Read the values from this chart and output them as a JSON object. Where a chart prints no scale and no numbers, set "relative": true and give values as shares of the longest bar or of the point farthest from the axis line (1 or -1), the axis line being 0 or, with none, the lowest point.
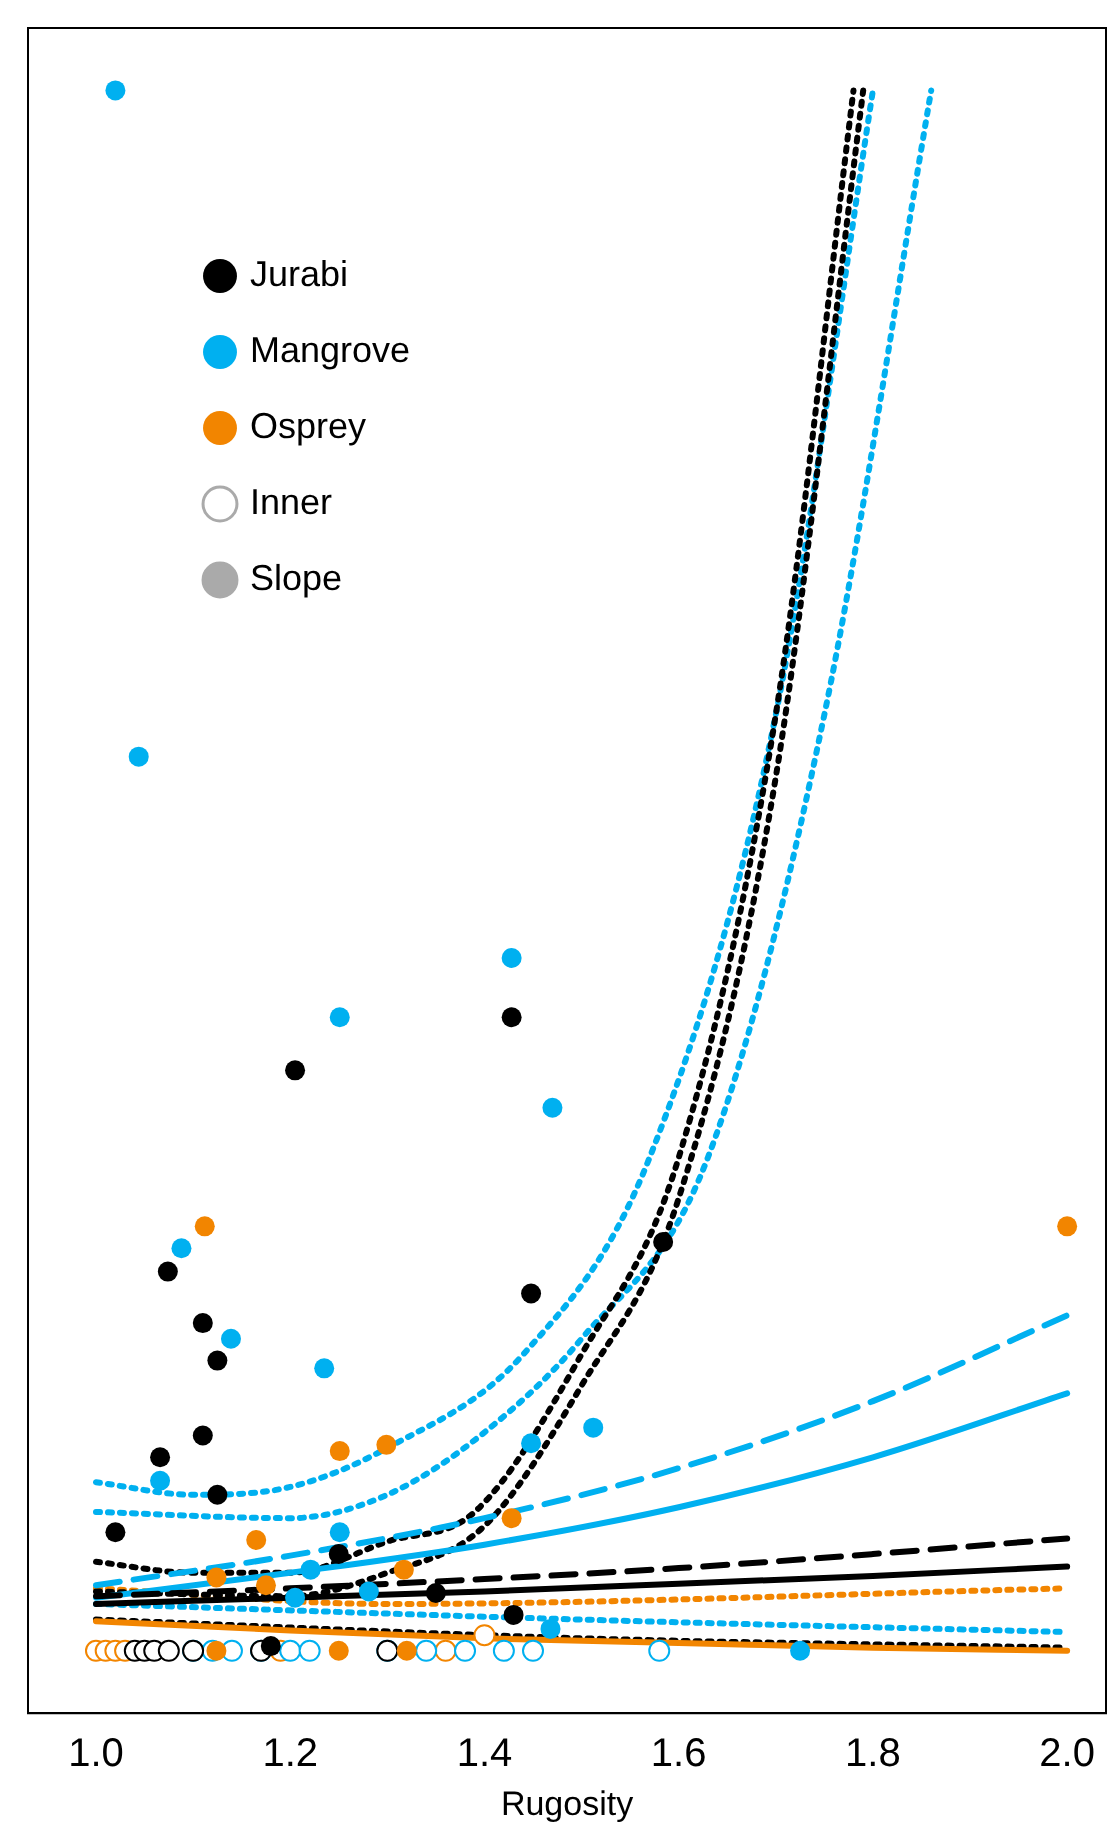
{
  "chart_data": {
    "type": "scatter",
    "xlabel": "Rugosity",
    "relative": true,
    "xlim": [
      0.93,
      2.04
    ],
    "xticks": [
      {
        "value": 1,
        "label": "1.0"
      },
      {
        "value": 1.2,
        "label": "1.2"
      },
      {
        "value": 1.4,
        "label": "1.4"
      },
      {
        "value": 1.6,
        "label": "1.6"
      },
      {
        "value": 1.8,
        "label": "1.8"
      },
      {
        "value": 2,
        "label": "2.0"
      }
    ],
    "grid": false,
    "legend": "top left",
    "marker": "circle",
    "series": [
      {
        "name": "Jurabi",
        "type": "scatter",
        "color": "#000000",
        "x": [
          1.02,
          1.066,
          1.074,
          1.11,
          1.11,
          1.125,
          1.125,
          1.205,
          1.25,
          1.35,
          1.428,
          1.43,
          1.448,
          1.584,
          1.18
        ],
        "values": [
          0.076,
          0.124,
          0.243,
          0.21,
          0.138,
          0.186,
          0.1,
          0.372,
          0.062,
          0.037,
          0.406,
          0.023,
          0.229,
          0.262,
          0.003
        ]
      },
      {
        "name": "Mangrove",
        "type": "scatter",
        "color": "#00b0f0",
        "x": [
          1.02,
          1.044,
          1.088,
          1.066,
          1.139,
          1.235,
          1.251,
          1.221,
          1.205,
          1.281,
          1.428,
          1.251,
          1.47,
          1.448,
          1.512,
          1.468,
          1.725
        ],
        "values": [
          1.0,
          0.573,
          0.258,
          0.109,
          0.2,
          0.181,
          0.076,
          0.052,
          0.034,
          0.038,
          0.444,
          0.406,
          0.348,
          0.133,
          0.143,
          0.014,
          0.0
        ]
      },
      {
        "name": "Osprey",
        "type": "scatter",
        "color": "#f28500",
        "x": [
          1.112,
          1.251,
          1.299,
          1.165,
          1.428,
          1.317,
          1.124,
          1.175,
          2.0,
          1.124,
          1.25,
          1.32
        ],
        "values": [
          0.272,
          0.128,
          0.132,
          0.071,
          0.085,
          0.052,
          0.047,
          0.042,
          0.272,
          0.0,
          0.0,
          0.0
        ]
      },
      {
        "type": "scatter",
        "line_style": "solid",
        "color": "#000000",
        "x": [
          1.04,
          1.05,
          1.06,
          1.075,
          1.1,
          1.17,
          1.3
        ],
        "values": [
          0,
          0,
          0,
          0,
          0,
          0,
          0
        ]
      },
      {
        "type": "scatter",
        "line_style": "solid",
        "color": "#00b0f0",
        "x": [
          1.1,
          1.12,
          1.14,
          1.17,
          1.2,
          1.22,
          1.3,
          1.34,
          1.38,
          1.42,
          1.45,
          1.58
        ],
        "values": [
          0,
          0,
          0,
          0,
          0,
          0,
          0,
          0,
          0,
          0,
          0,
          0
        ]
      },
      {
        "type": "scatter",
        "line_style": "solid",
        "color": "#f28500",
        "x": [
          1.0,
          1.01,
          1.02,
          1.03,
          1.19,
          1.36,
          1.4
        ],
        "values": [
          0,
          0,
          0,
          0,
          0,
          0,
          0.01
        ]
      },
      {
        "name": "Inner",
        "type": "line",
        "line_style": "solid",
        "marker": "circle",
        "color": "#aaaaaa"
      },
      {
        "name": "Slope",
        "type": "line",
        "line_style": "dashed",
        "marker": "circle",
        "color": "#aaaaaa"
      },
      {
        "type": "line",
        "line_style": "solid",
        "marker": "none",
        "color": "#000000",
        "x": [
          1.0,
          1.2,
          1.4,
          1.6,
          1.8,
          2.0
        ],
        "values": [
          0.03,
          0.034,
          0.038,
          0.043,
          0.048,
          0.054
        ]
      },
      {
        "type": "line",
        "line_style": "dashed",
        "marker": "none",
        "color": "#000000",
        "x": [
          1.0,
          1.2,
          1.4,
          1.6,
          1.8,
          2.0
        ],
        "values": [
          0.035,
          0.04,
          0.046,
          0.053,
          0.062,
          0.072
        ]
      },
      {
        "type": "line",
        "line_style": "solid",
        "marker": "none",
        "color": "#00b0f0",
        "x": [
          1.0,
          1.2,
          1.4,
          1.6,
          1.8,
          2.0
        ],
        "values": [
          0.034,
          0.05,
          0.068,
          0.092,
          0.124,
          0.165
        ]
      },
      {
        "type": "line",
        "line_style": "dashed",
        "marker": "none",
        "color": "#00b0f0",
        "x": [
          1.0,
          1.2,
          1.4,
          1.6,
          1.8,
          2.0
        ],
        "values": [
          0.042,
          0.061,
          0.085,
          0.117,
          0.16,
          0.215
        ]
      },
      {
        "type": "line",
        "line_style": "solid",
        "marker": "none",
        "color": "#f28500",
        "x": [
          1.0,
          1.2,
          1.4,
          1.6,
          1.8,
          2.0
        ],
        "values": [
          0.019,
          0.013,
          0.008,
          0.005,
          0.002,
          0.0
        ]
      },
      {
        "type": "line",
        "line_style": "dotted",
        "marker": "none",
        "color": "#000000",
        "x": [
          1.0,
          1.1,
          1.2,
          1.3,
          1.39,
          1.5,
          1.6,
          1.7,
          1.78
        ],
        "values": [
          0.057,
          0.05,
          0.05,
          0.07,
          0.089,
          0.19,
          0.316,
          0.6,
          1.0
        ]
      },
      {
        "type": "line",
        "line_style": "dotted",
        "marker": "none",
        "color": "#000000",
        "x": [
          1.0,
          1.2,
          1.3,
          1.4,
          1.5,
          1.6,
          1.7,
          1.79
        ],
        "values": [
          0.038,
          0.035,
          0.05,
          0.08,
          0.17,
          0.29,
          0.56,
          1.0
        ]
      },
      {
        "type": "line",
        "line_style": "dotted",
        "marker": "none",
        "color": "#00b0f0",
        "x": [
          1.0,
          1.1,
          1.2,
          1.3,
          1.44,
          1.57,
          1.7,
          1.8
        ],
        "values": [
          0.108,
          0.1,
          0.105,
          0.13,
          0.19,
          0.316,
          0.6,
          1.0
        ]
      },
      {
        "type": "line",
        "line_style": "dotted",
        "marker": "none",
        "color": "#00b0f0",
        "x": [
          1.0,
          1.2,
          1.3,
          1.4,
          1.5,
          1.63,
          1.75,
          1.86
        ],
        "values": [
          0.089,
          0.085,
          0.1,
          0.14,
          0.2,
          0.316,
          0.6,
          1.0
        ]
      },
      {
        "type": "line",
        "line_style": "dotted",
        "marker": "none",
        "color": "#00b0f0",
        "x": [
          1.0,
          1.5,
          2.0
        ],
        "values": [
          0.03,
          0.02,
          0.012
        ]
      },
      {
        "type": "line",
        "line_style": "dotted",
        "marker": "none",
        "color": "#f28500",
        "x": [
          1.0,
          1.3,
          2.0
        ],
        "values": [
          0.04,
          0.03,
          0.04
        ]
      },
      {
        "type": "line",
        "line_style": "dotted",
        "marker": "none",
        "color": "#000000",
        "x": [
          1.0,
          1.5,
          2.0
        ],
        "values": [
          0.02,
          0.008,
          0.002
        ]
      }
    ]
  }
}
